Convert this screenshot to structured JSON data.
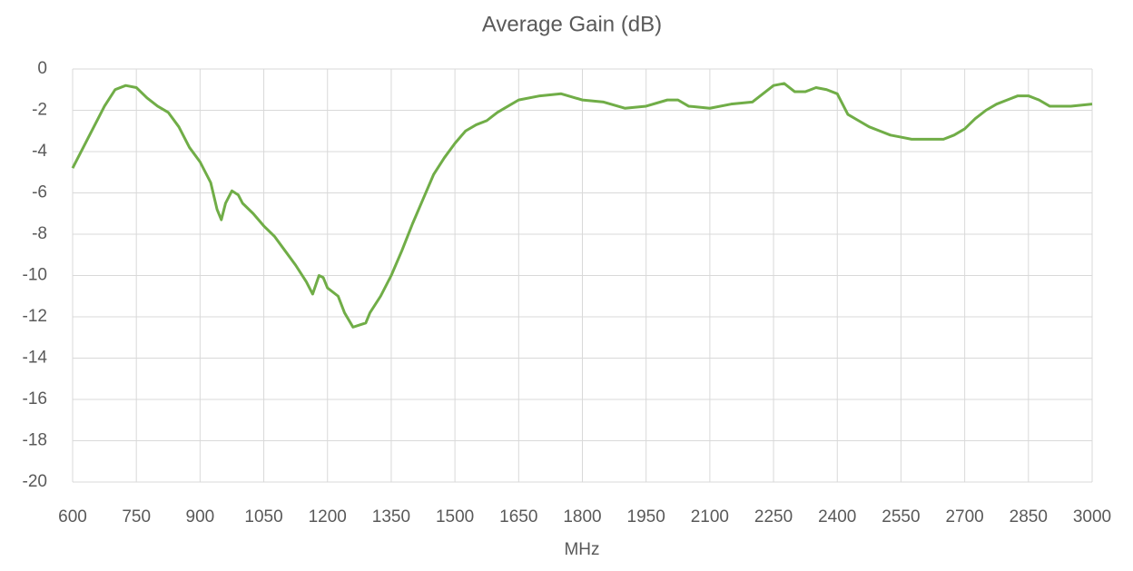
{
  "chart_data": {
    "type": "line",
    "title": "Average Gain (dB)",
    "x_label": "MHz",
    "x": [
      600,
      625,
      650,
      675,
      700,
      725,
      750,
      775,
      800,
      825,
      850,
      875,
      900,
      925,
      940,
      950,
      960,
      975,
      990,
      1000,
      1025,
      1050,
      1075,
      1100,
      1125,
      1150,
      1165,
      1180,
      1190,
      1200,
      1225,
      1240,
      1260,
      1275,
      1290,
      1300,
      1325,
      1350,
      1375,
      1400,
      1425,
      1450,
      1475,
      1500,
      1525,
      1550,
      1575,
      1600,
      1625,
      1650,
      1700,
      1750,
      1800,
      1850,
      1900,
      1950,
      2000,
      2025,
      2050,
      2100,
      2150,
      2200,
      2250,
      2275,
      2300,
      2325,
      2350,
      2375,
      2400,
      2425,
      2450,
      2475,
      2500,
      2525,
      2550,
      2575,
      2600,
      2625,
      2650,
      2675,
      2700,
      2725,
      2750,
      2775,
      2800,
      2825,
      2850,
      2875,
      2900,
      2950,
      3000
    ],
    "series": [
      {
        "name": "Average Gain",
        "color": "#70ad47",
        "values": [
          -4.8,
          -3.8,
          -2.8,
          -1.8,
          -1.0,
          -0.8,
          -0.9,
          -1.4,
          -1.8,
          -2.1,
          -2.8,
          -3.8,
          -4.5,
          -5.5,
          -6.8,
          -7.3,
          -6.5,
          -5.9,
          -6.1,
          -6.5,
          -7.0,
          -7.6,
          -8.1,
          -8.8,
          -9.5,
          -10.3,
          -10.9,
          -10.0,
          -10.1,
          -10.6,
          -11.0,
          -11.8,
          -12.5,
          -12.4,
          -12.3,
          -11.8,
          -11.0,
          -10.0,
          -8.8,
          -7.5,
          -6.3,
          -5.1,
          -4.3,
          -3.6,
          -3.0,
          -2.7,
          -2.5,
          -2.1,
          -1.8,
          -1.5,
          -1.3,
          -1.2,
          -1.5,
          -1.6,
          -1.9,
          -1.8,
          -1.5,
          -1.5,
          -1.8,
          -1.9,
          -1.7,
          -1.6,
          -0.8,
          -0.7,
          -1.1,
          -1.1,
          -0.9,
          -1.0,
          -1.2,
          -2.2,
          -2.5,
          -2.8,
          -3.0,
          -3.2,
          -3.3,
          -3.4,
          -3.4,
          -3.4,
          -3.4,
          -3.2,
          -2.9,
          -2.4,
          -2.0,
          -1.7,
          -1.5,
          -1.3,
          -1.3,
          -1.5,
          -1.8,
          -1.8,
          -1.7
        ]
      }
    ],
    "xlim": [
      600,
      3000
    ],
    "xticks": [
      600,
      750,
      900,
      1050,
      1200,
      1350,
      1500,
      1650,
      1800,
      1950,
      2100,
      2250,
      2400,
      2550,
      2700,
      2850,
      3000
    ],
    "ylim": [
      -20,
      0
    ],
    "yticks": [
      0,
      -2,
      -4,
      -6,
      -8,
      -10,
      -12,
      -14,
      -16,
      -18,
      -20
    ],
    "grid": true
  }
}
